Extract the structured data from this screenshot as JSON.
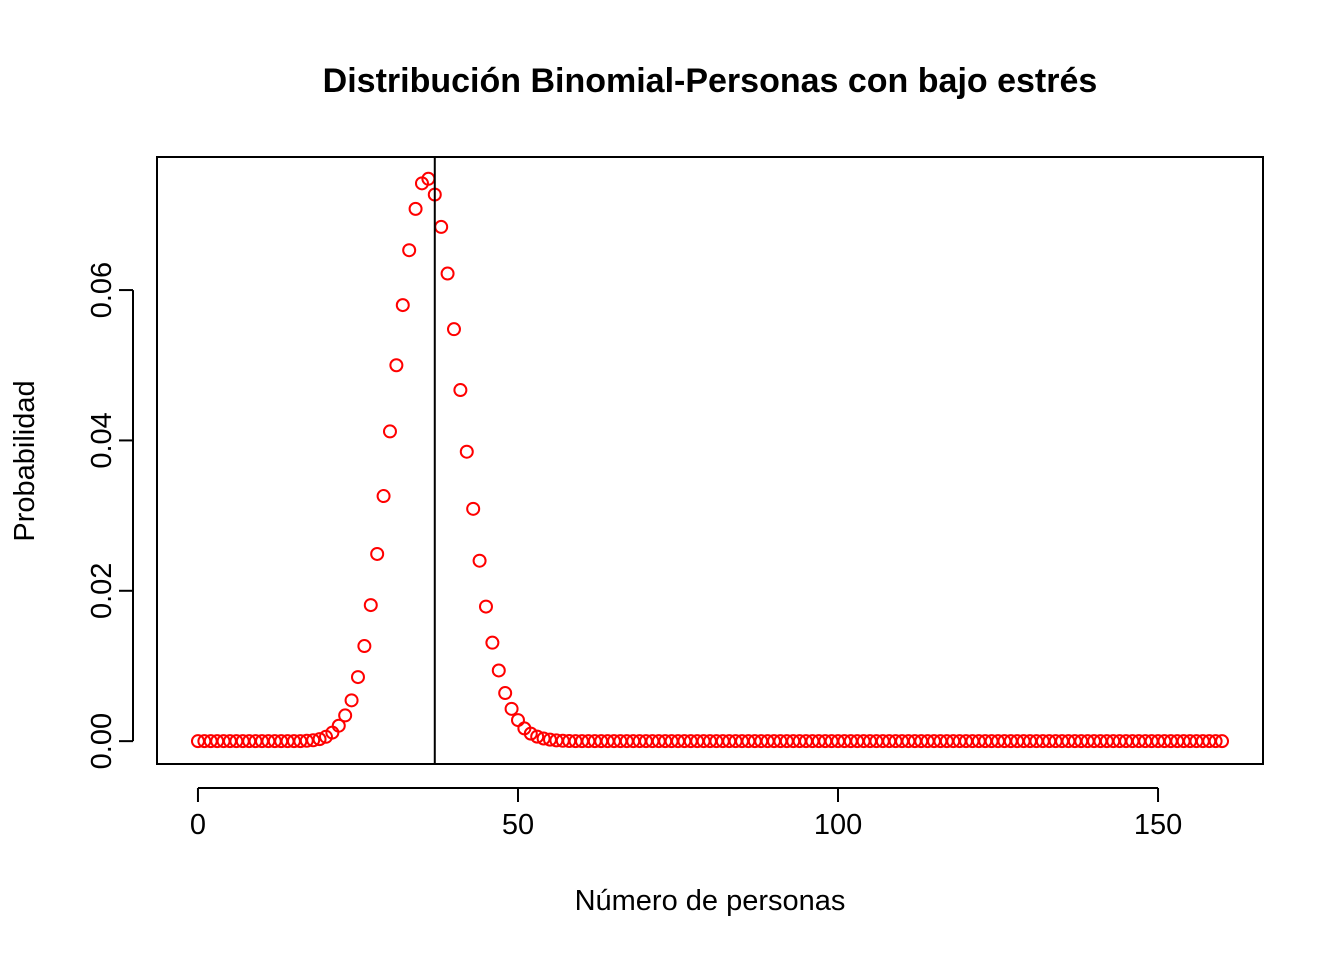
{
  "chart_data": {
    "type": "scatter",
    "title": "Distribución Binomial-Personas con bajo estrés",
    "xlabel": "Número de personas",
    "ylabel": "Probabilidad",
    "xlim": [
      -6.4,
      166.4
    ],
    "ylim": [
      -0.00304,
      0.0777
    ],
    "x_ticks": [
      0,
      50,
      100,
      150
    ],
    "x_tick_labels": [
      "0",
      "50",
      "100",
      "150"
    ],
    "y_ticks": [
      0,
      0.02,
      0.04,
      0.06
    ],
    "y_tick_labels": [
      "0.00",
      "0.02",
      "0.04",
      "0.06"
    ],
    "grid": false,
    "marker": "open-circle",
    "marker_color": "#ff0000",
    "vline": {
      "x": 37,
      "color": "#000000"
    },
    "series": [
      {
        "name": "",
        "x": [
          0,
          1,
          2,
          3,
          4,
          5,
          6,
          7,
          8,
          9,
          10,
          11,
          12,
          13,
          14,
          15,
          16,
          17,
          18,
          19,
          20,
          21,
          22,
          23,
          24,
          25,
          26,
          27,
          28,
          29,
          30,
          31,
          32,
          33,
          34,
          35,
          36,
          37,
          38,
          39,
          40,
          41,
          42,
          43,
          44,
          45,
          46,
          47,
          48,
          49,
          50,
          51,
          52,
          53,
          54,
          55,
          56,
          57,
          58,
          59,
          60,
          61,
          62,
          63,
          64,
          65,
          66,
          67,
          68,
          69,
          70,
          71,
          72,
          73,
          74,
          75,
          76,
          77,
          78,
          79,
          80,
          81,
          82,
          83,
          84,
          85,
          86,
          87,
          88,
          89,
          90,
          91,
          92,
          93,
          94,
          95,
          96,
          97,
          98,
          99,
          100,
          101,
          102,
          103,
          104,
          105,
          106,
          107,
          108,
          109,
          110,
          111,
          112,
          113,
          114,
          115,
          116,
          117,
          118,
          119,
          120,
          121,
          122,
          123,
          124,
          125,
          126,
          127,
          128,
          129,
          130,
          131,
          132,
          133,
          134,
          135,
          136,
          137,
          138,
          139,
          140,
          141,
          142,
          143,
          144,
          145,
          146,
          147,
          148,
          149,
          150,
          151,
          152,
          153,
          154,
          155,
          156,
          157,
          158,
          159,
          160
        ],
        "y": [
          0,
          0,
          0,
          0,
          0,
          0,
          0,
          0,
          0,
          0,
          0,
          0,
          0,
          0,
          0,
          0,
          0,
          5e-05,
          0.00012,
          0.00027,
          0.00058,
          0.00114,
          0.00205,
          0.00342,
          0.00543,
          0.00852,
          0.01265,
          0.0181,
          0.0249,
          0.0326,
          0.0412,
          0.05,
          0.058,
          0.0653,
          0.0708,
          0.0742,
          0.0748,
          0.0727,
          0.0684,
          0.0622,
          0.0548,
          0.0467,
          0.0385,
          0.0309,
          0.024,
          0.0179,
          0.0131,
          0.0094,
          0.0064,
          0.0043,
          0.0028,
          0.0017,
          0.001,
          0.0006,
          0.00035,
          0.0002,
          0.0001,
          5e-05,
          2e-05,
          0,
          0,
          0,
          0,
          0,
          0,
          0,
          0,
          0,
          0,
          0,
          0,
          0,
          0,
          0,
          0,
          0,
          0,
          0,
          0,
          0,
          0,
          0,
          0,
          0,
          0,
          0,
          0,
          0,
          0,
          0,
          0,
          0,
          0,
          0,
          0,
          0,
          0,
          0,
          0,
          0,
          0,
          0,
          0,
          0,
          0,
          0,
          0,
          0,
          0,
          0,
          0,
          0,
          0,
          0,
          0,
          0,
          0,
          0,
          0,
          0,
          0,
          0,
          0,
          0,
          0,
          0,
          0,
          0,
          0,
          0,
          0,
          0,
          0,
          0,
          0,
          0,
          0,
          0,
          0,
          0,
          0,
          0,
          0,
          0,
          0,
          0,
          0,
          0,
          0,
          0,
          0,
          0,
          0,
          0,
          0,
          0,
          0,
          0,
          0,
          0,
          0
        ]
      }
    ]
  }
}
